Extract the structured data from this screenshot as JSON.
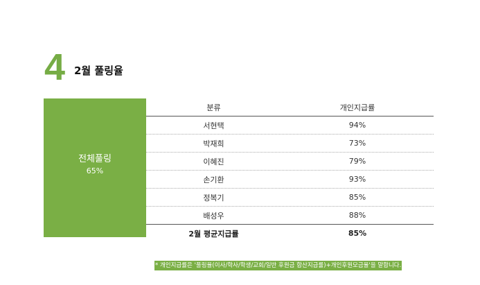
{
  "section": {
    "number": "4",
    "title": "2월 풀링율"
  },
  "summary": {
    "label": "전체풀링",
    "value": "65%"
  },
  "table": {
    "headers": [
      "분류",
      "개인지급률"
    ],
    "rows": [
      {
        "name": "서현택",
        "rate": "94%"
      },
      {
        "name": "박재희",
        "rate": "73%"
      },
      {
        "name": "이혜진",
        "rate": "79%"
      },
      {
        "name": "손기환",
        "rate": "93%"
      },
      {
        "name": "정복기",
        "rate": "85%"
      },
      {
        "name": "배성우",
        "rate": "88%"
      }
    ],
    "total": {
      "label": "2월 평균지급률",
      "rate": "85%"
    }
  },
  "footnote": "* 개인지급률은 '풀링율(이사/학사/학생/교회/일반 후원금 합산지급률)+개인후원모금율'을 말합니다.",
  "colors": {
    "accent": "#7aaf45"
  }
}
